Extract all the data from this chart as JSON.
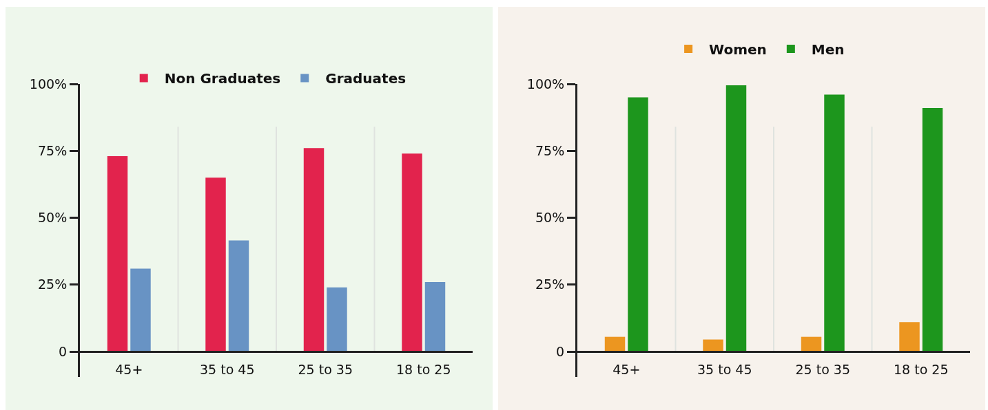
{
  "chart_data": [
    {
      "type": "bar",
      "categories": [
        "45+",
        "35 to 45",
        "25 to 35",
        "18 to 25"
      ],
      "series": [
        {
          "name": "Non Graduates",
          "color": "#e2234d",
          "values": [
            73,
            65,
            76,
            74
          ]
        },
        {
          "name": "Graduates",
          "color": "#6893c4",
          "values": [
            31,
            41.5,
            24,
            26
          ]
        }
      ],
      "ylim": [
        -9.5,
        100
      ],
      "yticks": [
        {
          "value": 0,
          "label": "0"
        },
        {
          "value": 25,
          "label": "25%"
        },
        {
          "value": 50,
          "label": "50%"
        },
        {
          "value": 75,
          "label": "75%"
        },
        {
          "value": 100,
          "label": "100%"
        }
      ],
      "grid": "x",
      "legend": "top right"
    },
    {
      "type": "bar",
      "categories": [
        "45+",
        "35 to 45",
        "25 to 35",
        "18 to 25"
      ],
      "series": [
        {
          "name": "Women",
          "color": "#ec9620",
          "values": [
            5.5,
            4.5,
            5.5,
            11
          ]
        },
        {
          "name": "Men",
          "color": "#1d961d",
          "values": [
            95,
            99.5,
            96,
            91
          ]
        }
      ],
      "ylim": [
        -9.5,
        100
      ],
      "yticks": [
        {
          "value": 0,
          "label": "0"
        },
        {
          "value": 25,
          "label": "25%"
        },
        {
          "value": 50,
          "label": "50%"
        },
        {
          "value": 75,
          "label": "75%"
        },
        {
          "value": 100,
          "label": "100%"
        }
      ],
      "grid": "x",
      "legend": "top"
    }
  ]
}
